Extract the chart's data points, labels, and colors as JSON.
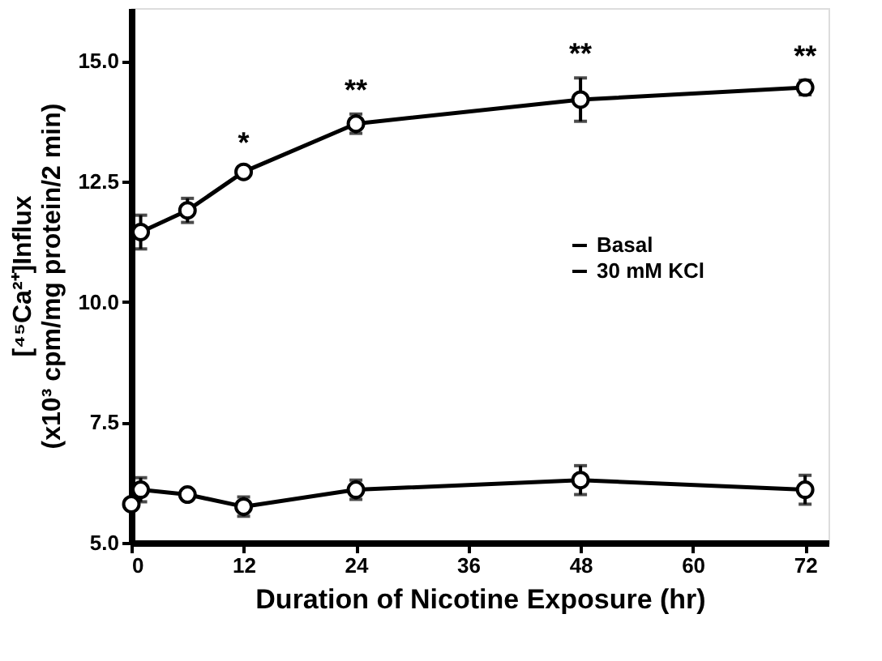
{
  "chart_data": {
    "type": "line",
    "xlabel": "Duration of Nicotine Exposure (hr)",
    "ylabel": "[⁴⁵Ca²⁺]Influx\n(x10³ cpm/mg protein/2 min)",
    "xlim": [
      0,
      74.5
    ],
    "xticks": [
      0,
      12,
      24,
      36,
      48,
      60,
      72
    ],
    "ylim": [
      5,
      16.1
    ],
    "yticks": [
      {
        "value": 5,
        "label": "5.0"
      },
      {
        "value": 7.5,
        "label": "7.5"
      },
      {
        "value": 10,
        "label": "10.0"
      },
      {
        "value": 12.5,
        "label": "12.5"
      },
      {
        "value": 15,
        "label": "15.0"
      }
    ],
    "marker": "circle",
    "line_style": "solid",
    "legend": "right",
    "grid": false,
    "series": [
      {
        "name": "Basal",
        "color": "#000000",
        "x": [
          0,
          1,
          6,
          12,
          24,
          48,
          72
        ],
        "values": [
          5.8,
          6.1,
          6.0,
          5.75,
          6.1,
          6.3,
          6.1
        ],
        "errors": [
          null,
          0.25,
          null,
          0.2,
          0.2,
          0.3,
          0.3
        ]
      },
      {
        "name": "30 mM KCl",
        "color": "#000000",
        "x": [
          1,
          6,
          12,
          24,
          48,
          72
        ],
        "values": [
          11.45,
          11.9,
          12.7,
          13.7,
          14.2,
          14.45
        ],
        "errors": [
          0.35,
          0.25,
          0.1,
          0.2,
          0.45,
          0.15
        ]
      }
    ],
    "annotations": [
      {
        "text": "*",
        "x": 12,
        "y": 12.8
      },
      {
        "text": "**",
        "x": 24,
        "y": 13.9
      },
      {
        "text": "**",
        "x": 48,
        "y": 14.65
      },
      {
        "text": "**",
        "x": 72,
        "y": 14.6
      }
    ]
  }
}
